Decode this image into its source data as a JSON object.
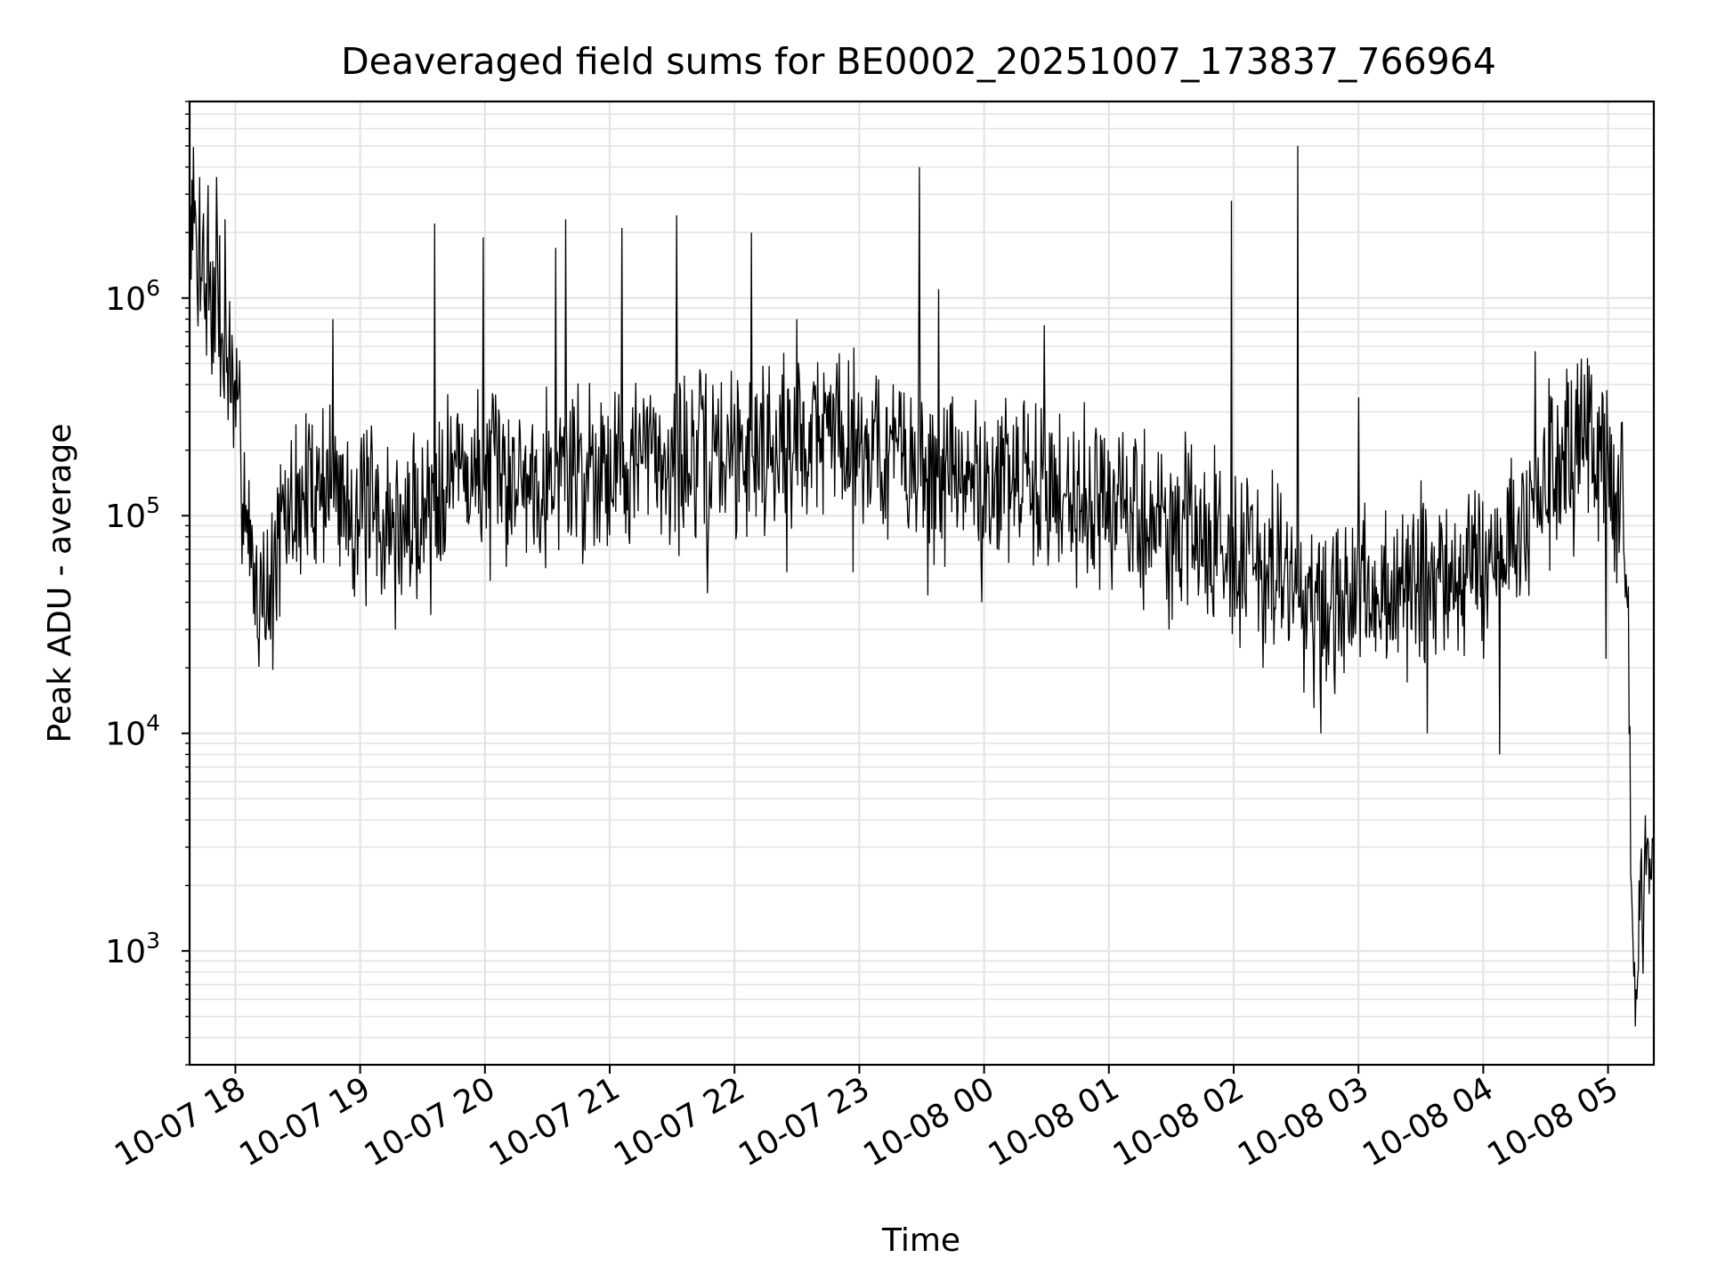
{
  "chart_data": {
    "type": "line",
    "title": "Deaveraged field sums for BE0002_20251007_173837_766964",
    "xlabel": "Time",
    "ylabel": "Peak ADU - average",
    "y_scale": "log",
    "ylim": [
      300,
      8000000
    ],
    "xlim": [
      "2025-10-07 17:38",
      "2025-10-08 05:22"
    ],
    "grid": true,
    "x_ticks": [
      {
        "t": "2025-10-07 18:00",
        "label": "10-07 18"
      },
      {
        "t": "2025-10-07 19:00",
        "label": "10-07 19"
      },
      {
        "t": "2025-10-07 20:00",
        "label": "10-07 20"
      },
      {
        "t": "2025-10-07 21:00",
        "label": "10-07 21"
      },
      {
        "t": "2025-10-07 22:00",
        "label": "10-07 22"
      },
      {
        "t": "2025-10-07 23:00",
        "label": "10-07 23"
      },
      {
        "t": "2025-10-08 00:00",
        "label": "10-08 00"
      },
      {
        "t": "2025-10-08 01:00",
        "label": "10-08 01"
      },
      {
        "t": "2025-10-08 02:00",
        "label": "10-08 02"
      },
      {
        "t": "2025-10-08 03:00",
        "label": "10-08 03"
      },
      {
        "t": "2025-10-08 04:00",
        "label": "10-08 04"
      },
      {
        "t": "2025-10-08 05:00",
        "label": "10-08 05"
      }
    ],
    "y_ticks": [
      {
        "value": 1000,
        "base": "10",
        "exp": "3"
      },
      {
        "value": 10000,
        "base": "10",
        "exp": "4"
      },
      {
        "value": 100000,
        "base": "10",
        "exp": "5"
      },
      {
        "value": 1000000,
        "base": "10",
        "exp": "6"
      }
    ],
    "series": [
      {
        "color": "#000000",
        "points": [
          [
            "2025-10-07 17:38",
            1500000
          ],
          [
            "2025-10-07 17:40",
            2500000
          ],
          [
            "2025-10-07 17:42",
            1100000
          ],
          [
            "2025-10-07 17:44",
            2000000
          ],
          [
            "2025-10-07 17:46",
            900000
          ],
          [
            "2025-10-07 17:48",
            1300000
          ],
          [
            "2025-10-07 17:50",
            700000
          ],
          [
            "2025-10-07 17:52",
            1000000
          ],
          [
            "2025-10-07 17:54",
            500000
          ],
          [
            "2025-10-07 17:56",
            600000
          ],
          [
            "2025-10-07 17:58",
            400000
          ],
          [
            "2025-10-07 18:00",
            280000
          ],
          [
            "2025-10-07 18:02",
            220000
          ],
          [
            "2025-10-07 18:05",
            120000
          ],
          [
            "2025-10-07 18:08",
            60000
          ],
          [
            "2025-10-07 18:11",
            45000
          ],
          [
            "2025-10-07 18:14",
            55000
          ],
          [
            "2025-10-07 18:17",
            42000
          ],
          [
            "2025-10-07 18:20",
            70000
          ],
          [
            "2025-10-07 18:24",
            90000
          ],
          [
            "2025-10-07 18:28",
            110000
          ],
          [
            "2025-10-07 18:33",
            120000
          ],
          [
            "2025-10-07 18:38",
            140000
          ],
          [
            "2025-10-07 18:44",
            150000
          ],
          [
            "2025-10-07 18:50",
            130000
          ],
          [
            "2025-10-07 18:56",
            110000
          ],
          [
            "2025-10-07 19:02",
            100000
          ],
          [
            "2025-10-07 19:08",
            95000
          ],
          [
            "2025-10-07 19:14",
            90000
          ],
          [
            "2025-10-07 19:20",
            85000
          ],
          [
            "2025-10-07 19:26",
            95000
          ],
          [
            "2025-10-07 19:32",
            110000
          ],
          [
            "2025-10-07 19:38",
            150000
          ],
          [
            "2025-10-07 19:45",
            170000
          ],
          [
            "2025-10-07 19:52",
            160000
          ],
          [
            "2025-10-07 20:00",
            145000
          ],
          [
            "2025-10-07 20:10",
            150000
          ],
          [
            "2025-10-07 20:20",
            155000
          ],
          [
            "2025-10-07 20:30",
            160000
          ],
          [
            "2025-10-07 20:40",
            170000
          ],
          [
            "2025-10-07 20:50",
            180000
          ],
          [
            "2025-10-07 21:00",
            175000
          ],
          [
            "2025-10-07 21:10",
            180000
          ],
          [
            "2025-10-07 21:20",
            190000
          ],
          [
            "2025-10-07 21:30",
            185000
          ],
          [
            "2025-10-07 21:40",
            175000
          ],
          [
            "2025-10-07 21:50",
            190000
          ],
          [
            "2025-10-07 22:00",
            200000
          ],
          [
            "2025-10-07 22:10",
            210000
          ],
          [
            "2025-10-07 22:20",
            220000
          ],
          [
            "2025-10-07 22:30",
            230000
          ],
          [
            "2025-10-07 22:40",
            250000
          ],
          [
            "2025-10-07 22:50",
            260000
          ],
          [
            "2025-10-07 23:00",
            230000
          ],
          [
            "2025-10-07 23:10",
            200000
          ],
          [
            "2025-10-07 23:20",
            180000
          ],
          [
            "2025-10-07 23:30",
            160000
          ],
          [
            "2025-10-07 23:40",
            150000
          ],
          [
            "2025-10-07 23:50",
            145000
          ],
          [
            "2025-10-08 00:00",
            140000
          ],
          [
            "2025-10-08 00:10",
            145000
          ],
          [
            "2025-10-08 00:20",
            140000
          ],
          [
            "2025-10-08 00:30",
            135000
          ],
          [
            "2025-10-08 00:40",
            130000
          ],
          [
            "2025-10-08 00:50",
            125000
          ],
          [
            "2025-10-08 01:00",
            110000
          ],
          [
            "2025-10-08 01:10",
            100000
          ],
          [
            "2025-10-08 01:20",
            95000
          ],
          [
            "2025-10-08 01:30",
            90000
          ],
          [
            "2025-10-08 01:40",
            85000
          ],
          [
            "2025-10-08 01:50",
            80000
          ],
          [
            "2025-10-08 02:00",
            70000
          ],
          [
            "2025-10-08 02:10",
            60000
          ],
          [
            "2025-10-08 02:20",
            55000
          ],
          [
            "2025-10-08 02:30",
            45000
          ],
          [
            "2025-10-08 02:40",
            30000
          ],
          [
            "2025-10-08 02:50",
            35000
          ],
          [
            "2025-10-08 03:00",
            40000
          ],
          [
            "2025-10-08 03:10",
            45000
          ],
          [
            "2025-10-08 03:20",
            42000
          ],
          [
            "2025-10-08 03:30",
            50000
          ],
          [
            "2025-10-08 03:40",
            48000
          ],
          [
            "2025-10-08 03:50",
            55000
          ],
          [
            "2025-10-08 04:00",
            60000
          ],
          [
            "2025-10-08 04:10",
            70000
          ],
          [
            "2025-10-08 04:20",
            90000
          ],
          [
            "2025-10-08 04:30",
            140000
          ],
          [
            "2025-10-08 04:40",
            180000
          ],
          [
            "2025-10-08 04:50",
            200000
          ],
          [
            "2025-10-08 05:00",
            150000
          ],
          [
            "2025-10-08 05:05",
            120000
          ],
          [
            "2025-10-08 05:08",
            130000
          ],
          [
            "2025-10-08 05:10",
            20000
          ],
          [
            "2025-10-08 05:11",
            3000
          ],
          [
            "2025-10-08 05:12",
            900
          ],
          [
            "2025-10-08 05:13",
            700
          ],
          [
            "2025-10-08 05:14",
            600
          ],
          [
            "2025-10-08 05:15",
            1500
          ],
          [
            "2025-10-08 05:16",
            2000
          ],
          [
            "2025-10-08 05:17",
            1200
          ],
          [
            "2025-10-08 05:18",
            2500
          ],
          [
            "2025-10-08 05:19",
            3000
          ],
          [
            "2025-10-08 05:20",
            2000
          ],
          [
            "2025-10-08 05:22",
            4000
          ]
        ],
        "spikes": [
          [
            "2025-10-07 17:39",
            3500000
          ],
          [
            "2025-10-07 17:43",
            3600000
          ],
          [
            "2025-10-07 17:47",
            3300000
          ],
          [
            "2025-10-07 17:51",
            3600000
          ],
          [
            "2025-10-07 17:55",
            2300000
          ],
          [
            "2025-10-07 18:47",
            800000
          ],
          [
            "2025-10-07 19:36",
            2200000
          ],
          [
            "2025-10-07 19:59",
            1900000
          ],
          [
            "2025-10-07 20:34",
            1700000
          ],
          [
            "2025-10-07 20:39",
            2300000
          ],
          [
            "2025-10-07 21:06",
            2100000
          ],
          [
            "2025-10-07 21:32",
            2400000
          ],
          [
            "2025-10-07 22:08",
            2000000
          ],
          [
            "2025-10-07 22:30",
            800000
          ],
          [
            "2025-10-07 23:29",
            4000000
          ],
          [
            "2025-10-07 23:38",
            1100000
          ],
          [
            "2025-10-08 00:29",
            750000
          ],
          [
            "2025-10-08 01:59",
            2800000
          ],
          [
            "2025-10-08 02:31",
            5000000
          ],
          [
            "2025-10-08 03:00",
            350000
          ],
          [
            "2025-10-08 04:25",
            570000
          ],
          [
            "2025-10-08 04:50",
            530000
          ],
          [
            "2025-10-08 04:59",
            530000
          ]
        ],
        "dips": [
          [
            "2025-10-07 18:11",
            27000
          ],
          [
            "2025-10-07 18:17",
            27000
          ],
          [
            "2025-10-07 19:17",
            30000
          ],
          [
            "2025-10-07 19:34",
            35000
          ],
          [
            "2025-10-07 20:47",
            60000
          ],
          [
            "2025-10-07 21:47",
            44000
          ],
          [
            "2025-10-07 22:25",
            55000
          ],
          [
            "2025-10-07 22:57",
            55000
          ],
          [
            "2025-10-07 23:33",
            43000
          ],
          [
            "2025-10-07 23:59",
            40000
          ],
          [
            "2025-10-08 01:29",
            30000
          ],
          [
            "2025-10-08 02:14",
            20000
          ],
          [
            "2025-10-08 02:42",
            10000
          ],
          [
            "2025-10-08 03:33",
            10000
          ],
          [
            "2025-10-08 04:08",
            8000
          ],
          [
            "2025-10-08 04:59",
            22000
          ],
          [
            "2025-10-08 05:13",
            450
          ],
          [
            "2025-10-08 05:14",
            600
          ]
        ]
      }
    ]
  }
}
